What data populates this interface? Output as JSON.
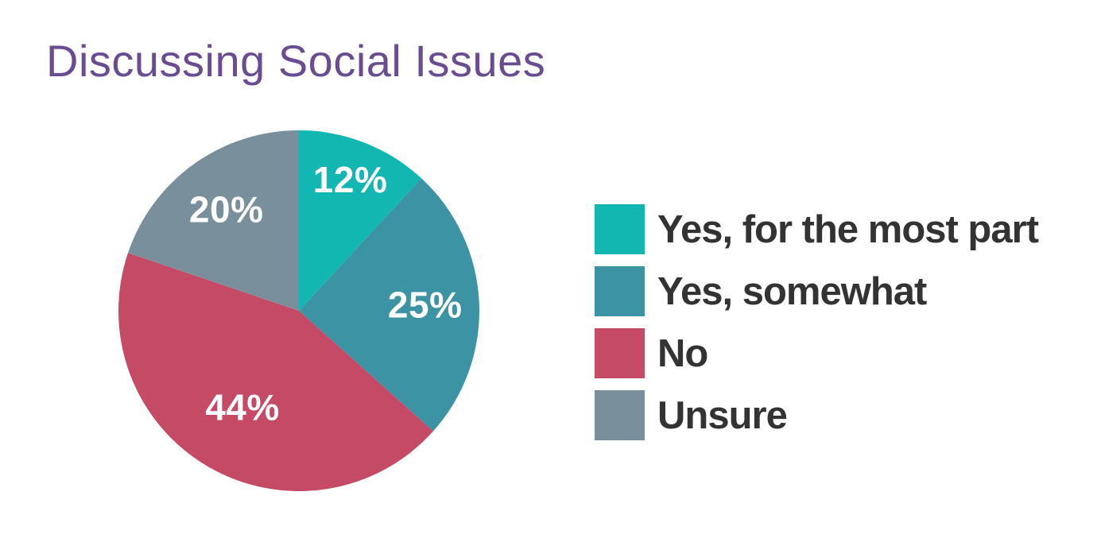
{
  "title": {
    "text": "Discussing Social Issues",
    "color": "#6A4C93"
  },
  "chart_data": {
    "type": "pie",
    "title": "Discussing Social Issues",
    "categories": [
      "Yes, for the most part",
      "Yes, somewhat",
      "No",
      "Unsure"
    ],
    "values": [
      12,
      25,
      44,
      20
    ],
    "unit": "%",
    "slice_labels": [
      "12%",
      "25%",
      "44%",
      "20%"
    ],
    "colors": [
      "#12B7B2",
      "#3B93A4",
      "#C54A66",
      "#7A8F9C"
    ],
    "start_angle_deg": 0,
    "direction": "clockwise",
    "legend_position": "right",
    "slice_label_color": "#FFFFFF"
  },
  "legend": {
    "items": [
      {
        "label": "Yes, for the most part",
        "color": "#12B7B2"
      },
      {
        "label": "Yes, somewhat",
        "color": "#3B93A4"
      },
      {
        "label": "No",
        "color": "#C54A66"
      },
      {
        "label": "Unsure",
        "color": "#7A8F9C"
      }
    ]
  }
}
